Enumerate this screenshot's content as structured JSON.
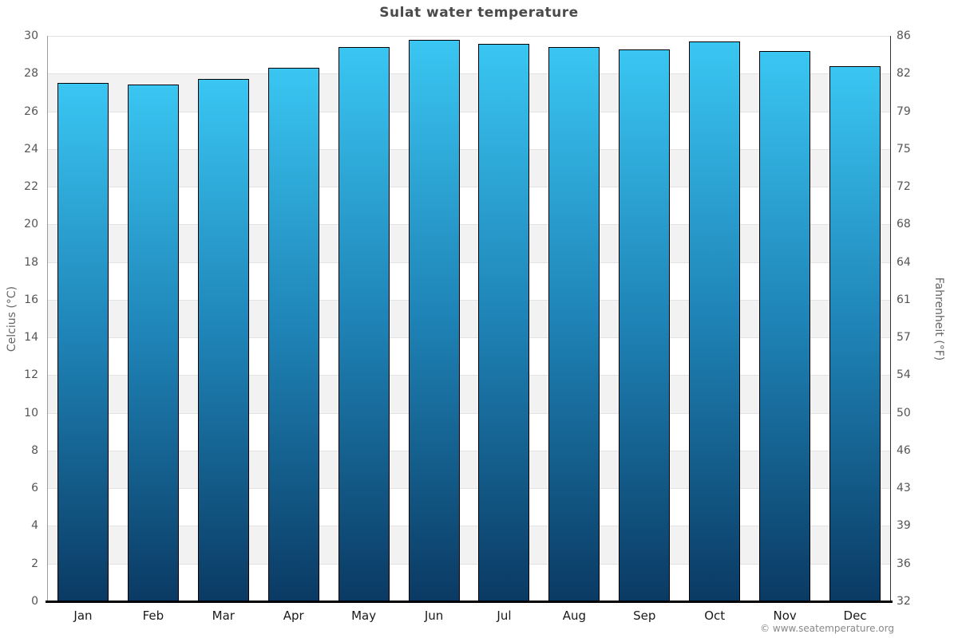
{
  "title": "Sulat water temperature",
  "footer": "© www.seatemperature.org",
  "chart_data": {
    "type": "bar",
    "title": "Sulat water temperature",
    "categories": [
      "Jan",
      "Feb",
      "Mar",
      "Apr",
      "May",
      "Jun",
      "Jul",
      "Aug",
      "Sep",
      "Oct",
      "Nov",
      "Dec"
    ],
    "values": [
      27.5,
      27.4,
      27.7,
      28.3,
      29.4,
      29.8,
      29.6,
      29.4,
      29.3,
      29.7,
      29.2,
      28.4
    ],
    "unit": "°C",
    "ylabel_left": "Celcius (°C)",
    "ylabel_right": "Fahrenheit (°F)",
    "ylim": [
      0,
      30
    ],
    "ytick_step": 2,
    "yticks_celsius": [
      0,
      2,
      4,
      6,
      8,
      10,
      12,
      14,
      16,
      18,
      20,
      22,
      24,
      26,
      28,
      30
    ],
    "yticks_fahrenheit": [
      32,
      36,
      39,
      43,
      46,
      50,
      54,
      57,
      61,
      64,
      68,
      72,
      75,
      79,
      82,
      86
    ],
    "grid": true,
    "legend": false,
    "colors": {
      "bar_gradient_top": "#3AC6F2",
      "bar_gradient_mid": "#1E82B5",
      "bar_gradient_bottom": "#0A3A63",
      "bar_border": "#000000",
      "band": "#f2f2f2",
      "gridline": "#e2e2e2",
      "left_axis": "#999999",
      "right_axis": "#333333",
      "baseline": "#000000"
    }
  }
}
